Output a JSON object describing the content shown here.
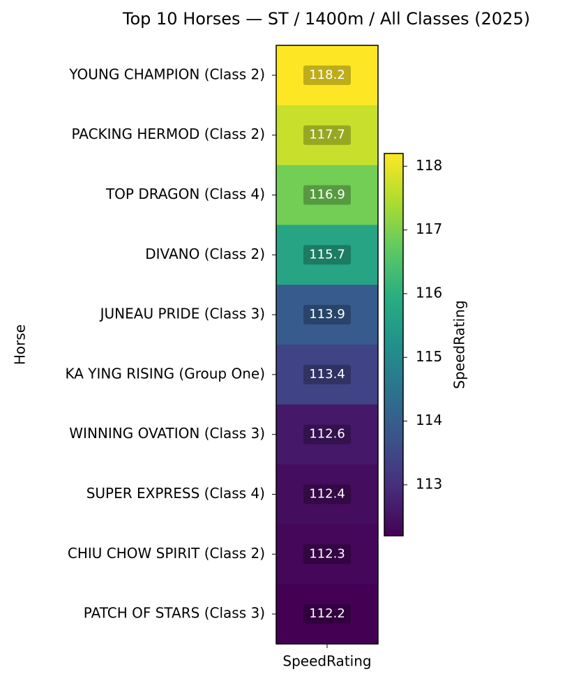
{
  "chart_data": {
    "type": "heatmap",
    "title": "Top 10 Horses — ST / 1400m / All Classes (2025)",
    "ylabel": "Horse",
    "categories": [
      "YOUNG CHAMPION (Class 2)",
      "PACKING HERMOD (Class 2)",
      "TOP DRAGON (Class 4)",
      "DIVANO (Class 2)",
      "JUNEAU PRIDE (Class 3)",
      "KA YING RISING (Group One)",
      "WINNING OVATION (Class 3)",
      "SUPER EXPRESS (Class 4)",
      "CHIU CHOW SPIRIT (Class 2)",
      "PATCH OF STARS (Class 3)"
    ],
    "columns": [
      "SpeedRating"
    ],
    "values": [
      118.2,
      117.7,
      116.9,
      115.7,
      113.9,
      113.4,
      112.6,
      112.4,
      112.3,
      112.2
    ],
    "colormap": "viridis",
    "colorbar_label": "SpeedRating",
    "clim": [
      112.2,
      118.2
    ],
    "cticks": [
      113,
      114,
      115,
      116,
      117,
      118
    ]
  }
}
